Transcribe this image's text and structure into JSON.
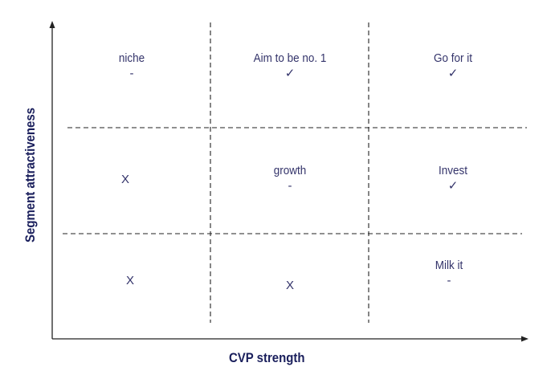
{
  "diagram": {
    "x_axis_title": "CVP strength",
    "y_axis_title": "Segment attractiveness",
    "cells": {
      "top_left": {
        "label": "niche",
        "mark": "-"
      },
      "top_middle": {
        "label": "Aim to be no. 1",
        "mark": "✓"
      },
      "top_right": {
        "label": "Go for it",
        "mark": "✓"
      },
      "middle_left": {
        "label": "",
        "mark": "X"
      },
      "middle_middle": {
        "label": "growth",
        "mark": "-"
      },
      "middle_right": {
        "label": "Invest",
        "mark": "✓"
      },
      "bottom_left": {
        "label": "",
        "mark": "X"
      },
      "bottom_middle": {
        "label": "",
        "mark": "X"
      },
      "bottom_right": {
        "label": "Milk it",
        "mark": "-"
      }
    }
  },
  "colors": {
    "axis_title": "#1a1f5c",
    "cell_text": "#33336a",
    "lines": "#222222"
  }
}
